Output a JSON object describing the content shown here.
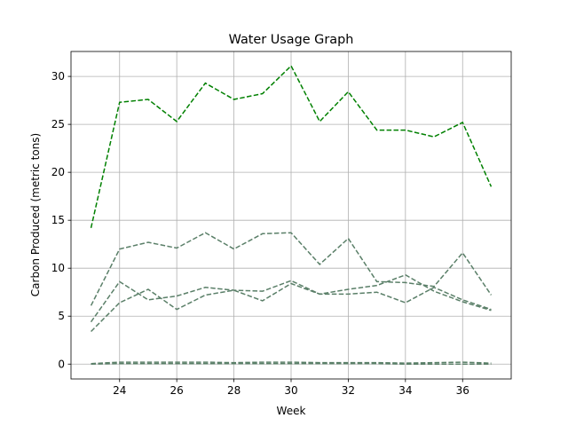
{
  "chart_data": {
    "type": "line",
    "title": "Water Usage Graph",
    "xlabel": "Week",
    "ylabel": "Carbon Produced (metric tons)",
    "xlim": [
      22.3,
      37.7
    ],
    "ylim": [
      -1.55,
      32.6
    ],
    "xticks": [
      24,
      26,
      28,
      30,
      32,
      34,
      36
    ],
    "yticks": [
      0,
      5,
      10,
      15,
      20,
      25,
      30
    ],
    "grid": true,
    "x": [
      23,
      24,
      25,
      26,
      27,
      28,
      29,
      30,
      31,
      32,
      33,
      34,
      35,
      36,
      37
    ],
    "series": [
      {
        "color": "#008000",
        "values": [
          14.2,
          27.3,
          27.6,
          25.3,
          29.3,
          27.6,
          28.2,
          31.1,
          25.3,
          28.4,
          24.4,
          24.4,
          23.7,
          25.2,
          18.5
        ]
      },
      {
        "color": "#5a7f68",
        "values": [
          6.1,
          12.0,
          12.7,
          12.1,
          13.7,
          12.0,
          13.6,
          13.7,
          10.4,
          13.1,
          8.6,
          8.5,
          8.1,
          11.6,
          7.2
        ]
      },
      {
        "color": "#5a7f68",
        "values": [
          4.4,
          8.6,
          6.7,
          7.1,
          8.0,
          7.7,
          7.6,
          8.7,
          7.3,
          7.3,
          7.5,
          6.4,
          8.0,
          6.7,
          5.7
        ]
      },
      {
        "color": "#5a7f68",
        "values": [
          3.4,
          6.4,
          7.8,
          5.7,
          7.2,
          7.7,
          6.6,
          8.4,
          7.3,
          7.8,
          8.2,
          9.3,
          7.6,
          6.5,
          5.6
        ]
      },
      {
        "color": "#5a7f68",
        "values": [
          0.05,
          0.2,
          0.2,
          0.2,
          0.2,
          0.15,
          0.2,
          0.2,
          0.15,
          0.15,
          0.15,
          0.1,
          0.15,
          0.2,
          0.1
        ]
      },
      {
        "color": "#5a7f68",
        "values": [
          0.0,
          0.05,
          0.05,
          0.05,
          0.05,
          0.05,
          0.05,
          0.05,
          0.05,
          0.05,
          0.05,
          0.0,
          0.0,
          0.0,
          0.0
        ]
      }
    ]
  }
}
